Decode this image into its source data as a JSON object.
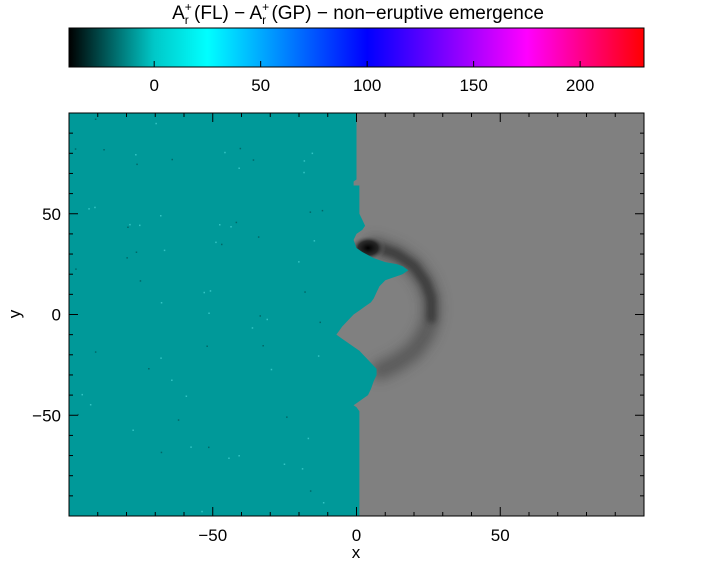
{
  "chart_data": {
    "type": "heatmap",
    "title": {
      "prefix": "A",
      "sub": "r",
      "sup": "+",
      "part1": " (FL) − A",
      "part2": " (GP) − non−eruptive emergence"
    },
    "colorbar": {
      "range": [
        -40,
        230
      ],
      "ticks": [
        0,
        50,
        100,
        150,
        200
      ],
      "colors": [
        "#000000",
        "#00c8c8",
        "#00ffff",
        "#0000ff",
        "#ff00ff",
        "#ff0000"
      ],
      "stops": [
        -40,
        0,
        25,
        100,
        175,
        230
      ]
    },
    "xlabel": "x",
    "ylabel": "y",
    "xlim": [
      -100,
      100
    ],
    "ylim": [
      -100,
      100
    ],
    "xticks": [
      -50,
      0,
      50
    ],
    "yticks": [
      -50,
      0,
      50
    ],
    "regions": {
      "left_color": "#009999",
      "right_color": "#808080",
      "feature_color": "#000000"
    },
    "feature": {
      "peak_x": 4,
      "peak_y": 33,
      "shape": "crescent"
    }
  }
}
